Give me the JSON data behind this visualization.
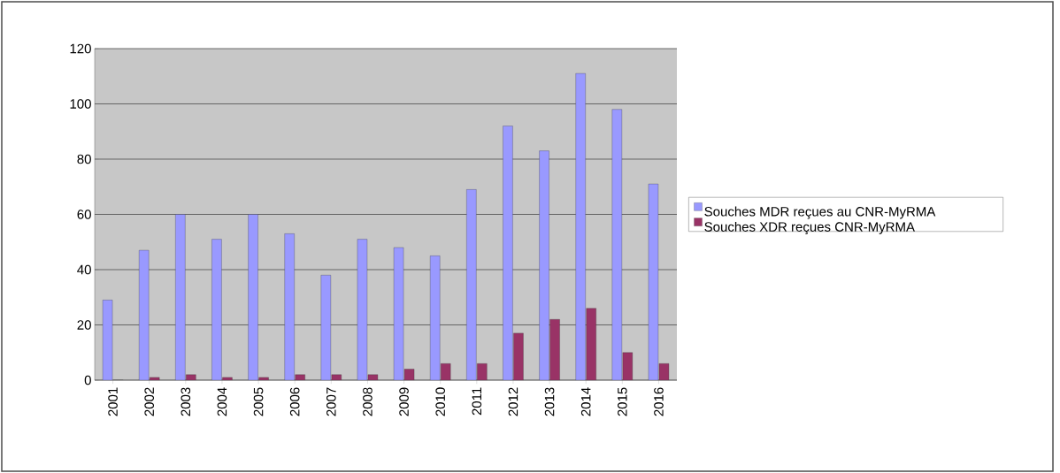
{
  "chart_data": {
    "type": "bar",
    "categories": [
      "2001",
      "2002",
      "2003",
      "2004",
      "2005",
      "2006",
      "2007",
      "2008",
      "2009",
      "2010",
      "2011",
      "2012",
      "2013",
      "2014",
      "2015",
      "2016"
    ],
    "series": [
      {
        "name": "Souches MDR reçues au CNR-MyRMA",
        "color": "#9999ff",
        "values": [
          29,
          47,
          60,
          51,
          60,
          53,
          38,
          51,
          48,
          45,
          69,
          92,
          83,
          111,
          98,
          71
        ]
      },
      {
        "name": "Souches XDR reçues CNR-MyRMA",
        "color": "#993366",
        "values": [
          0,
          1,
          2,
          1,
          1,
          2,
          2,
          2,
          4,
          6,
          6,
          17,
          22,
          26,
          10,
          6
        ]
      }
    ],
    "ylim": [
      0,
      120
    ],
    "yticks": [
      0,
      20,
      40,
      60,
      80,
      100,
      120
    ],
    "grid": "y",
    "legend": "right"
  }
}
